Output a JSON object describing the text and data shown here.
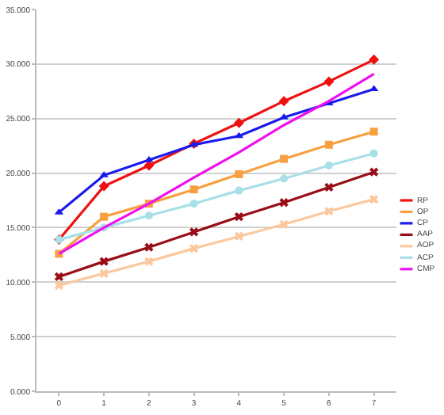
{
  "chart_data": {
    "type": "line",
    "x": [
      0,
      1,
      2,
      3,
      4,
      5,
      6,
      7
    ],
    "series": [
      {
        "name": "RP",
        "color": "#ee1111",
        "marker": "diamond",
        "values": [
          13.9,
          18.8,
          20.7,
          22.7,
          24.6,
          26.6,
          28.4,
          30.4
        ]
      },
      {
        "name": "OP",
        "color": "#f7a040",
        "marker": "square",
        "values": [
          12.6,
          16.0,
          17.2,
          18.5,
          19.9,
          21.3,
          22.6,
          23.8
        ]
      },
      {
        "name": "CP",
        "color": "#1a1aee",
        "marker": "triangle",
        "values": [
          16.4,
          19.8,
          21.2,
          22.6,
          23.4,
          25.1,
          26.4,
          27.7
        ]
      },
      {
        "name": "AAP",
        "color": "#990e16",
        "marker": "cross",
        "values": [
          10.5,
          11.9,
          13.2,
          14.6,
          16.0,
          17.3,
          18.7,
          20.1
        ]
      },
      {
        "name": "AOP",
        "color": "#fcc89e",
        "marker": "cross",
        "values": [
          9.7,
          10.8,
          11.9,
          13.1,
          14.2,
          15.3,
          16.5,
          17.6
        ]
      },
      {
        "name": "ACP",
        "color": "#a8dfe8",
        "marker": "circle",
        "values": [
          13.9,
          15.0,
          16.1,
          17.2,
          18.4,
          19.5,
          20.7,
          21.8
        ]
      },
      {
        "name": "CMP",
        "color": "#ee11ee",
        "marker": "none",
        "values": [
          12.6,
          15.0,
          17.2,
          19.6,
          21.9,
          24.4,
          26.6,
          29.1
        ]
      }
    ],
    "xlim": [
      -0.5,
      7.5
    ],
    "xticks": [
      0,
      1,
      2,
      3,
      4,
      5,
      6,
      7
    ],
    "ylim": [
      0,
      35
    ],
    "yticks": [
      {
        "value": 0,
        "label": "0.000"
      },
      {
        "value": 5,
        "label": "5.000"
      },
      {
        "value": 10,
        "label": "10.000"
      },
      {
        "value": 15,
        "label": "15.000"
      },
      {
        "value": 20,
        "label": "20.000"
      },
      {
        "value": 25,
        "label": "25.000"
      },
      {
        "value": 30,
        "label": "30.000"
      },
      {
        "value": 35,
        "label": "35.000"
      }
    ],
    "grid": "y",
    "legend": "right",
    "line_style": "solid"
  }
}
